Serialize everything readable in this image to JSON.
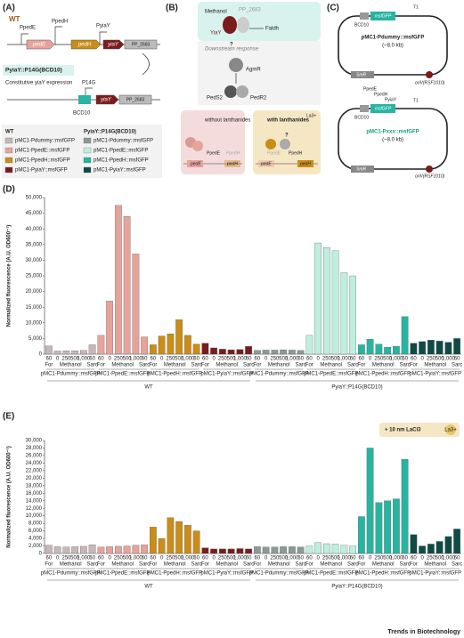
{
  "panel_labels": [
    "(A)",
    "(B)",
    "(C)",
    "(D)",
    "(E)"
  ],
  "diagram_a": {
    "wt": "WT",
    "promoters": [
      "PpedE",
      "PpedH",
      "PyiaY"
    ],
    "genes": [
      "pedE",
      "pedH",
      "yiaY",
      "PP_2683"
    ],
    "construct": "PyiaY::P14G(BCD10)",
    "construct_note": "Constitutive yiaY expression",
    "p14g": "P14G",
    "bcd": "BCD10"
  },
  "diagram_b": {
    "methanol": "Methanol",
    "pp2683": "PP_2683",
    "yiay": "YiaY",
    "faldh": "Faldh",
    "downstream": "Downstream response",
    "q": "?",
    "agmr": "AgmR",
    "peds2": "PedS2",
    "pedr2": "PedR2",
    "without": "without lanthanides",
    "with": "with lanthanides",
    "la": "La3+",
    "ppede": "PpedE",
    "ppedh": "PpedH",
    "pede": "pedE",
    "pedh": "pedH"
  },
  "diagram_c": {
    "bcd": "BCD10",
    "gfp": "msfGFP",
    "t1": "T1",
    "dummy": "pMC1-Pdummy::msfGFP",
    "size": "(~8.0 kb)",
    "smr": "SmR",
    "oriv": "oriV(RSF1010)",
    "promoters": [
      "PpedE",
      "PpedH",
      "PyiaY"
    ],
    "xxx": "pMC1-Pxxx::msfGFP"
  },
  "chart_data": [
    {
      "type": "bar",
      "y_label": "Normalized fluorescence (A.U. OD600⁻¹)",
      "ylim": [
        0,
        50000
      ],
      "yticks": [
        0,
        {
          "value": 5000,
          "label": "5,000"
        },
        {
          "value": 10000,
          "label": "10,000"
        },
        {
          "value": 15000,
          "label": "15,000"
        },
        {
          "value": 20000,
          "label": "20,000"
        },
        {
          "value": 25000,
          "label": "25,000"
        },
        {
          "value": 30000,
          "label": "30,000"
        },
        {
          "value": 35000,
          "label": "35,000"
        },
        {
          "value": 40000,
          "label": "40,000"
        },
        {
          "value": 45000,
          "label": "45,000"
        },
        {
          "value": 50000,
          "label": "50,000"
        }
      ],
      "categories": [
        "60",
        "0",
        "250",
        "500",
        "1,000",
        "60"
      ],
      "conditions": [
        "For",
        "Methanol",
        "Sarc"
      ],
      "strains": [
        "WT",
        "PyiaY::P14G(BCD10)"
      ],
      "series": [
        {
          "name": "pMC1-Pdummy::msfGFP",
          "color": "#c8b7b7",
          "values": [
            2600,
            1000,
            1100,
            1100,
            1200,
            3000
          ]
        },
        {
          "name": "pMC1-PpedE::msfGFP",
          "color": "#e6a39c",
          "values": [
            6000,
            17000,
            47500,
            44000,
            32000,
            5500
          ]
        },
        {
          "name": "pMC1-PpedH::msfGFP",
          "color": "#c98d18",
          "values": [
            3000,
            5800,
            6500,
            11000,
            6000,
            3200
          ]
        },
        {
          "name": "pMC1-PyiaY::msfGFP",
          "color": "#7b1c1c",
          "values": [
            3500,
            2000,
            1600,
            1400,
            1500,
            2500
          ]
        },
        {
          "name": "pMC1-Pdummy::msfGFP",
          "color": "#8b9a96",
          "values": [
            1200,
            1300,
            1300,
            1400,
            1300,
            1200
          ]
        },
        {
          "name": "pMC1-PpedE::msfGFP",
          "color": "#bdeede",
          "values": [
            6000,
            35500,
            34000,
            33000,
            26000,
            25000
          ]
        },
        {
          "name": "pMC1-PpedH::msfGFP",
          "color": "#27b4a0",
          "values": [
            3000,
            4800,
            3200,
            2200,
            2500,
            12000
          ]
        },
        {
          "name": "pMC1-PyiaY::msfGFP",
          "color": "#0e4b45",
          "values": [
            3500,
            4000,
            4500,
            4200,
            3800,
            5000
          ]
        }
      ]
    },
    {
      "type": "bar",
      "y_label": "Normalized fluorescence (A.U. OD600⁻¹)",
      "annotation": "+ 10 nm LaCl3",
      "annotation_ion": "La3+",
      "ylim": [
        0,
        30000
      ],
      "yticks": [
        0,
        {
          "value": 2000,
          "label": "2,000"
        },
        {
          "value": 4000,
          "label": "4,000"
        },
        {
          "value": 6000,
          "label": "6,000"
        },
        {
          "value": 8000,
          "label": "8,000"
        },
        {
          "value": 10000,
          "label": "10,000"
        },
        {
          "value": 12000,
          "label": "12,000"
        },
        {
          "value": 14000,
          "label": "14,000"
        },
        {
          "value": 16000,
          "label": "16,000"
        },
        {
          "value": 18000,
          "label": "18,000"
        },
        {
          "value": 20000,
          "label": "20,000"
        },
        {
          "value": 22000,
          "label": "22,000"
        },
        {
          "value": 24000,
          "label": "24,000"
        },
        {
          "value": 26000,
          "label": "26,000"
        },
        {
          "value": 28000,
          "label": "28,000"
        },
        {
          "value": 30000,
          "label": "30,000"
        }
      ],
      "categories": [
        "60",
        "0",
        "250",
        "500",
        "1,000",
        "60"
      ],
      "conditions": [
        "For",
        "Methanol",
        "Sarc"
      ],
      "strains": [
        "WT",
        "PyiaY::P14G(BCD10)"
      ],
      "series": [
        {
          "name": "pMC1-Pdummy::msfGFP",
          "color": "#c8b7b7",
          "values": [
            2200,
            1800,
            1700,
            1800,
            1900,
            2300
          ]
        },
        {
          "name": "pMC1-PpedE::msfGFP",
          "color": "#e6a39c",
          "values": [
            1700,
            1800,
            1900,
            2000,
            2200,
            2300
          ]
        },
        {
          "name": "pMC1-PpedH::msfGFP",
          "color": "#c98d18",
          "values": [
            7000,
            4000,
            9500,
            8500,
            7500,
            6000
          ]
        },
        {
          "name": "pMC1-PyiaY::msfGFP",
          "color": "#7b1c1c",
          "values": [
            1500,
            1200,
            1200,
            1200,
            1300,
            1200
          ]
        },
        {
          "name": "pMC1-Pdummy::msfGFP",
          "color": "#8b9a96",
          "values": [
            1800,
            1700,
            1700,
            1800,
            1800,
            1700
          ]
        },
        {
          "name": "pMC1-PpedE::msfGFP",
          "color": "#bdeede",
          "values": [
            2000,
            2900,
            2600,
            2500,
            2200,
            2000
          ]
        },
        {
          "name": "pMC1-PpedH::msfGFP",
          "color": "#27b4a0",
          "values": [
            9800,
            28000,
            13500,
            14000,
            14500,
            25000
          ]
        },
        {
          "name": "pMC1-PyiaY::msfGFP",
          "color": "#0e4b45",
          "values": [
            5000,
            2000,
            2500,
            3200,
            4500,
            6500
          ]
        }
      ]
    }
  ],
  "footer": "Trends in Biotechnology"
}
